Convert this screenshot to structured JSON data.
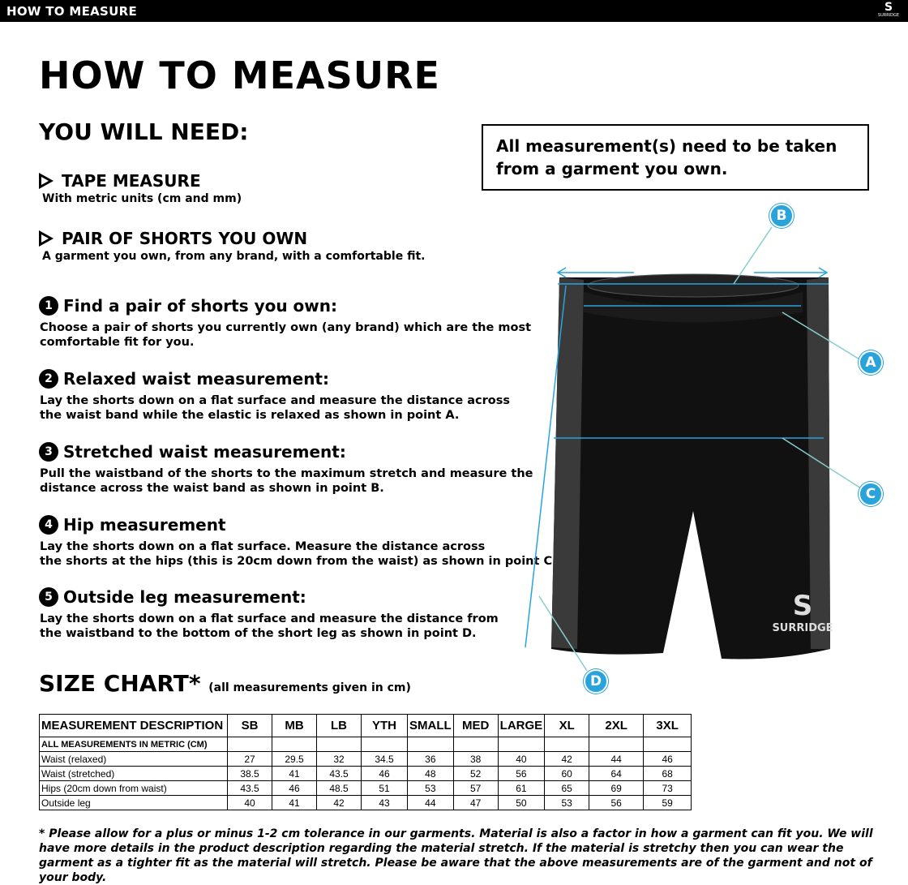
{
  "header": {
    "title": "HOW TO MEASURE",
    "logo_text": "SURRIDGE"
  },
  "page_title": "HOW TO MEASURE",
  "you_will_need": {
    "heading": "YOU WILL NEED:",
    "items": [
      {
        "title": "TAPE MEASURE",
        "desc": "With metric units (cm and mm)"
      },
      {
        "title": "PAIR OF SHORTS YOU OWN",
        "desc": "A garment you own, from any brand, with a comfortable fit."
      }
    ]
  },
  "notice": "All measurement(s) need to be taken from a garment you own.",
  "steps": [
    {
      "num": "1",
      "title": "Find a pair of shorts you own:",
      "desc": "Choose a pair of shorts you currently own (any brand) which are the most\ncomfortable fit for you."
    },
    {
      "num": "2",
      "title": "Relaxed waist measurement:",
      "desc": "Lay the shorts down on a flat surface and measure the distance across\nthe waist band while the elastic is relaxed as shown in point A."
    },
    {
      "num": "3",
      "title": "Stretched waist measurement:",
      "desc": "Pull the waistband of the shorts to the maximum stretch and measure the\ndistance across the waist band as shown in point B."
    },
    {
      "num": "4",
      "title": "Hip measurement",
      "desc": "Lay the shorts down on a flat surface. Measure the distance across\nthe shorts at the hips (this is 20cm down from the waist)  as shown in point C."
    },
    {
      "num": "5",
      "title": "Outside leg measurement:",
      "desc": "Lay the shorts down on a flat surface and measure the distance from\nthe waistband to the bottom of the short leg as shown in point D."
    }
  ],
  "diagram": {
    "points": [
      "A",
      "B",
      "C",
      "D"
    ],
    "accent": "#29a3dc",
    "garment_logo": "SURRIDGE"
  },
  "size_chart": {
    "title": "SIZE CHART*",
    "note": "(all measurements given in cm)",
    "headers": [
      "MEASUREMENT DESCRIPTION",
      "SB",
      "MB",
      "LB",
      "YTH",
      "SMALL",
      "MED",
      "LARGE",
      "XL",
      "2XL",
      "3XL"
    ],
    "metric_label": "ALL MEASUREMENTS IN METRIC (CM)",
    "rows": [
      {
        "label": "Waist (relaxed)",
        "values": [
          "27",
          "29.5",
          "32",
          "34.5",
          "36",
          "38",
          "40",
          "42",
          "44",
          "46"
        ]
      },
      {
        "label": "Waist (stretched)",
        "values": [
          "38.5",
          "41",
          "43.5",
          "46",
          "48",
          "52",
          "56",
          "60",
          "64",
          "68"
        ]
      },
      {
        "label": "Hips (20cm down from waist)",
        "values": [
          "43.5",
          "46",
          "48.5",
          "51",
          "53",
          "57",
          "61",
          "65",
          "69",
          "73"
        ]
      },
      {
        "label": "Outside leg",
        "values": [
          "40",
          "41",
          "42",
          "43",
          "44",
          "47",
          "50",
          "53",
          "56",
          "59"
        ]
      }
    ]
  },
  "footnote": "* Please allow for a plus or minus 1-2 cm tolerance in our garments. Material is also a factor in how a garment can fit you. We will have more details in the product description regarding the material stretch.  If the material is stretchy then you can wear the garment as a tighter fit as the material will stretch.  Please be aware that the above measurements are of the garment and not of your body."
}
